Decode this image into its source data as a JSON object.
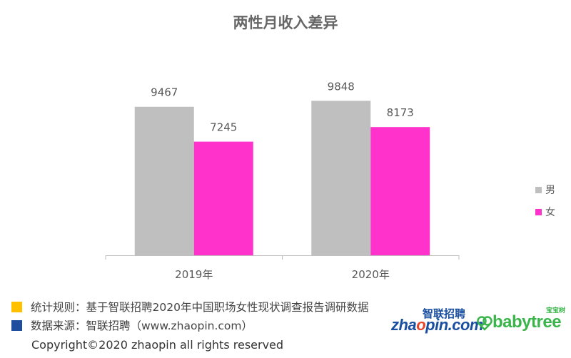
{
  "chart_data": {
    "type": "bar",
    "title": "两性月收入差异",
    "categories": [
      "2019年",
      "2020年"
    ],
    "series": [
      {
        "name": "男",
        "values": [
          9467,
          9848
        ],
        "color": "#bfbfbf"
      },
      {
        "name": "女",
        "values": [
          7245,
          8173
        ],
        "color": "#ff33cc"
      }
    ],
    "ylim": [
      0,
      10000
    ],
    "grid": false,
    "legend_position": "right"
  },
  "notes": {
    "rule": "统计规则：基于智联招聘2020年中国职场女性现状调查报告调研数据",
    "rule_color": "#ffc000",
    "source": "数据来源：智联招聘（www.zhaopin.com）",
    "source_color": "#1f4e9e"
  },
  "copyright": "Copyright©2020 zhaopin all rights reserved",
  "logos": {
    "zhaopin_cn": "智联招聘",
    "zhaopin_en_a": "zha",
    "zhaopin_en_b": "o",
    "zhaopin_en_c": "pin.com",
    "babytree_cn": "宝宝树",
    "babytree_en": "babytree"
  }
}
